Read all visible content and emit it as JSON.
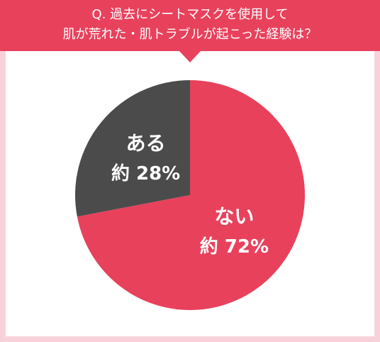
{
  "title_lines": [
    "Q. 過去にシートマスクを使用して",
    "肌が荒れた・肌トラブルが起こった経験は？"
  ],
  "chart_data": {
    "type": "pie",
    "categories": [
      "ある",
      "ない"
    ],
    "values": [
      28,
      72
    ],
    "value_labels": [
      "約 28%",
      "約 72%"
    ],
    "colors": [
      "#4b4b4b",
      "#e8415c"
    ],
    "start_angle": 90,
    "counterclock": true
  }
}
